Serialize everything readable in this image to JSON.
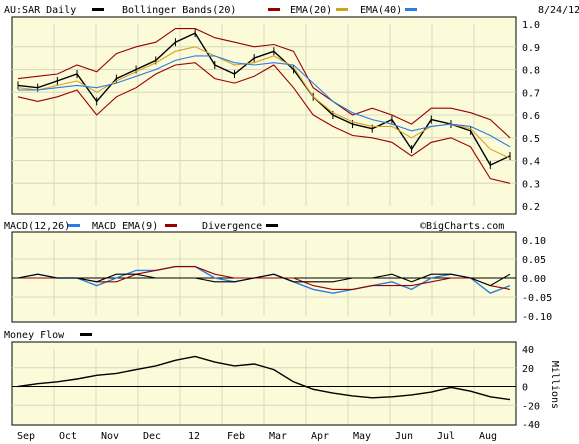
{
  "chart_data": [
    {
      "type": "line",
      "panel": "price",
      "title": "AU:SAR Daily",
      "date": "8/24/12",
      "legend": [
        {
          "name": "AU:SAR Daily",
          "color": "#000000"
        },
        {
          "name": "Bollinger Bands(20)",
          "color": "#990000"
        },
        {
          "name": "EMA(20)",
          "color": "#d8a020"
        },
        {
          "name": "EMA(40)",
          "color": "#2a7de1"
        }
      ],
      "ylim": [
        0.2,
        1.0
      ],
      "y_ticks": [
        "1.0",
        "0.9",
        "0.8",
        "0.7",
        "0.6",
        "0.5",
        "0.4",
        "0.3",
        "0.2"
      ],
      "x_labels": [
        "Sep",
        "Oct",
        "Nov",
        "Dec",
        "12",
        "Feb",
        "Mar",
        "Apr",
        "May",
        "Jun",
        "Jul",
        "Aug"
      ],
      "x": [
        0,
        10,
        20,
        30,
        40,
        50,
        60,
        70,
        80,
        90,
        100,
        110,
        120,
        130,
        140,
        150,
        160,
        170,
        180,
        190,
        200,
        210,
        220,
        230,
        240,
        250
      ],
      "series": [
        {
          "name": "AU:SAR Daily",
          "color": "#000000",
          "values": [
            0.73,
            0.72,
            0.75,
            0.78,
            0.66,
            0.76,
            0.8,
            0.84,
            0.92,
            0.96,
            0.82,
            0.78,
            0.85,
            0.88,
            0.8,
            0.68,
            0.6,
            0.56,
            0.54,
            0.58,
            0.45,
            0.58,
            0.56,
            0.53,
            0.38,
            0.42
          ]
        },
        {
          "name": "Bollinger Bands(20)",
          "color": "#990000",
          "values": [
            0.76,
            0.77,
            0.78,
            0.82,
            0.79,
            0.87,
            0.9,
            0.92,
            0.98,
            0.98,
            0.94,
            0.92,
            0.9,
            0.91,
            0.88,
            0.72,
            0.66,
            0.6,
            0.63,
            0.6,
            0.56,
            0.63,
            0.63,
            0.61,
            0.58,
            0.5
          ]
        },
        {
          "name": "Bollinger Bands(20)",
          "color": "#990000",
          "values": [
            0.68,
            0.66,
            0.68,
            0.71,
            0.6,
            0.68,
            0.72,
            0.78,
            0.82,
            0.83,
            0.76,
            0.74,
            0.77,
            0.82,
            0.72,
            0.6,
            0.55,
            0.51,
            0.5,
            0.48,
            0.42,
            0.48,
            0.5,
            0.46,
            0.32,
            0.3
          ]
        },
        {
          "name": "EMA(20)",
          "color": "#d8a020",
          "values": [
            0.72,
            0.71,
            0.73,
            0.75,
            0.7,
            0.75,
            0.79,
            0.83,
            0.88,
            0.9,
            0.86,
            0.82,
            0.83,
            0.86,
            0.81,
            0.68,
            0.61,
            0.57,
            0.55,
            0.55,
            0.5,
            0.55,
            0.56,
            0.54,
            0.45,
            0.41
          ]
        },
        {
          "name": "EMA(40)",
          "color": "#2a7de1",
          "values": [
            0.71,
            0.71,
            0.72,
            0.73,
            0.72,
            0.74,
            0.77,
            0.8,
            0.84,
            0.86,
            0.86,
            0.83,
            0.82,
            0.83,
            0.82,
            0.74,
            0.66,
            0.61,
            0.58,
            0.56,
            0.53,
            0.55,
            0.56,
            0.55,
            0.51,
            0.46
          ]
        }
      ]
    },
    {
      "type": "line",
      "panel": "macd",
      "watermark": "©BigCharts.com",
      "legend": [
        {
          "name": "MACD(12,26)",
          "color": "#2a7de1"
        },
        {
          "name": "MACD EMA(9)",
          "color": "#990000"
        },
        {
          "name": "Divergence",
          "color": "#000000"
        }
      ],
      "ylim": [
        -0.1,
        0.1
      ],
      "y_ticks": [
        "0.10",
        "0.05",
        "0.00",
        "-0.05",
        "-0.10"
      ],
      "x": [
        0,
        10,
        20,
        30,
        40,
        50,
        60,
        70,
        80,
        90,
        100,
        110,
        120,
        130,
        140,
        150,
        160,
        170,
        180,
        190,
        200,
        210,
        220,
        230,
        240,
        250
      ],
      "series": [
        {
          "name": "MACD(12,26)",
          "color": "#2a7de1",
          "values": [
            0.0,
            0.01,
            0.0,
            0.0,
            -0.02,
            0.0,
            0.02,
            0.02,
            0.03,
            0.03,
            0.0,
            -0.01,
            0.0,
            0.01,
            -0.01,
            -0.03,
            -0.04,
            -0.03,
            -0.02,
            -0.01,
            -0.03,
            0.0,
            0.01,
            0.0,
            -0.04,
            -0.02
          ]
        },
        {
          "name": "MACD EMA(9)",
          "color": "#990000",
          "values": [
            0.0,
            0.0,
            0.0,
            0.0,
            -0.01,
            -0.01,
            0.01,
            0.02,
            0.03,
            0.03,
            0.01,
            0.0,
            0.0,
            0.0,
            0.0,
            -0.02,
            -0.03,
            -0.03,
            -0.02,
            -0.02,
            -0.02,
            -0.01,
            0.0,
            0.0,
            -0.02,
            -0.03
          ]
        },
        {
          "name": "Divergence",
          "color": "#000000",
          "values": [
            0.0,
            0.01,
            0.0,
            0.0,
            -0.01,
            0.01,
            0.01,
            0.0,
            0.0,
            0.0,
            -0.01,
            -0.01,
            0.0,
            0.01,
            -0.01,
            -0.01,
            -0.01,
            0.0,
            0.0,
            0.01,
            -0.01,
            0.01,
            0.01,
            0.0,
            -0.02,
            0.01
          ]
        }
      ]
    },
    {
      "type": "line",
      "panel": "money-flow",
      "legend": [
        {
          "name": "Money Flow",
          "color": "#000000"
        }
      ],
      "ylabel": "Millions",
      "ylim": [
        -40,
        40
      ],
      "y_ticks": [
        "40",
        "20",
        "0",
        "-20",
        "-40"
      ],
      "x": [
        0,
        10,
        20,
        30,
        40,
        50,
        60,
        70,
        80,
        90,
        100,
        110,
        120,
        130,
        140,
        150,
        160,
        170,
        180,
        190,
        200,
        210,
        220,
        230,
        240,
        250
      ],
      "series": [
        {
          "name": "Money Flow",
          "color": "#000000",
          "values": [
            0,
            3,
            5,
            8,
            12,
            14,
            18,
            22,
            28,
            32,
            26,
            22,
            24,
            18,
            5,
            -3,
            -7,
            -10,
            -12,
            -11,
            -9,
            -6,
            -1,
            -5,
            -11,
            -14
          ]
        }
      ]
    }
  ]
}
